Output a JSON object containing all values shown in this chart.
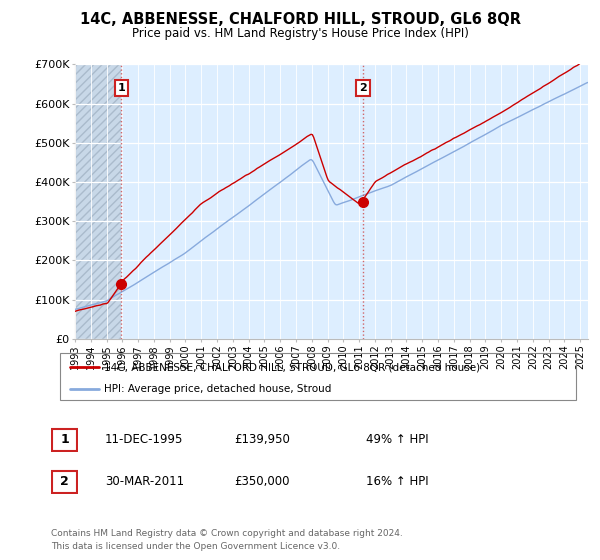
{
  "title": "14C, ABBENESSE, CHALFORD HILL, STROUD, GL6 8QR",
  "subtitle": "Price paid vs. HM Land Registry's House Price Index (HPI)",
  "legend_label_red": "14C, ABBENESSE, CHALFORD HILL, STROUD, GL6 8QR (detached house)",
  "legend_label_blue": "HPI: Average price, detached house, Stroud",
  "annotation1_label": "1",
  "annotation1_date": "11-DEC-1995",
  "annotation1_price": "£139,950",
  "annotation1_hpi": "49% ↑ HPI",
  "annotation2_label": "2",
  "annotation2_date": "30-MAR-2011",
  "annotation2_price": "£350,000",
  "annotation2_hpi": "16% ↑ HPI",
  "footer": "Contains HM Land Registry data © Crown copyright and database right 2024.\nThis data is licensed under the Open Government Licence v3.0.",
  "ylim": [
    0,
    700000
  ],
  "yticks": [
    0,
    100000,
    200000,
    300000,
    400000,
    500000,
    600000,
    700000
  ],
  "ytick_labels": [
    "£0",
    "£100K",
    "£200K",
    "£300K",
    "£400K",
    "£500K",
    "£600K",
    "£700K"
  ],
  "color_red": "#cc0000",
  "color_blue": "#88aadd",
  "background_color": "#ffffff",
  "plot_bg_color": "#ddeeff",
  "hatch_end_year": 1995.94,
  "point1_x": 1995.94,
  "point1_y": 139950,
  "point2_x": 2011.24,
  "point2_y": 350000,
  "xmin": 1993,
  "xmax": 2025.5
}
